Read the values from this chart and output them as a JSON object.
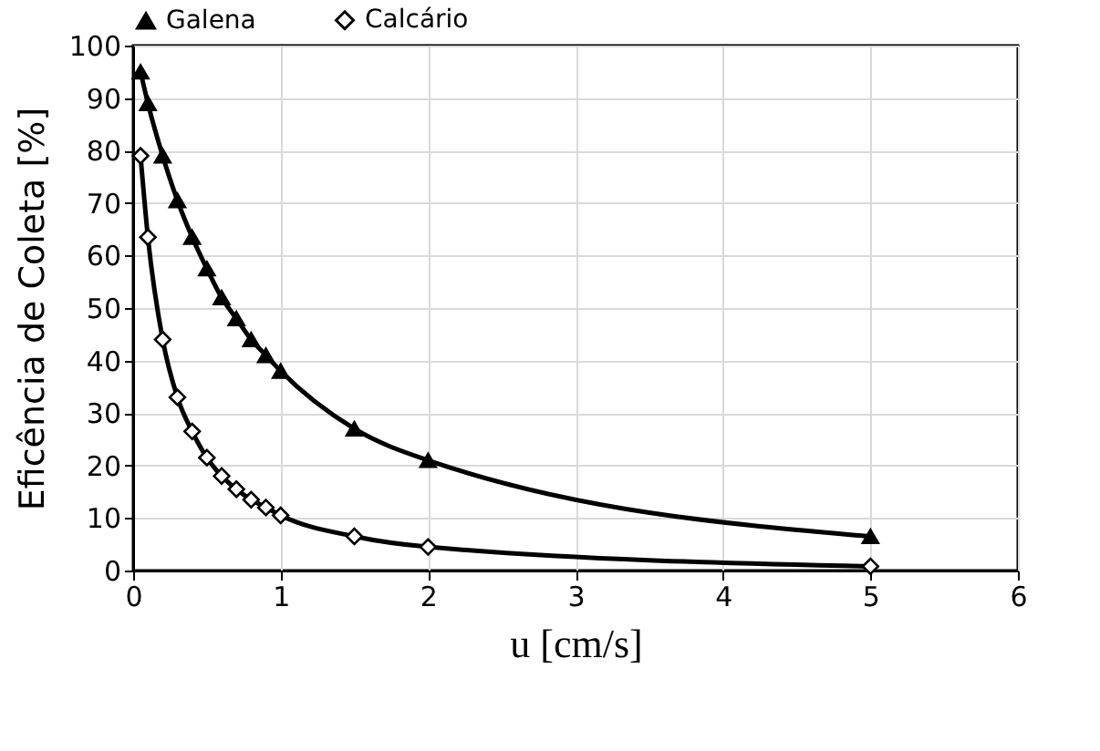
{
  "chart_data": {
    "type": "line",
    "xlabel": "u [cm/s]",
    "ylabel": "Eficência de Coleta [%]",
    "x": [
      0.05,
      0.1,
      0.2,
      0.3,
      0.4,
      0.5,
      0.6,
      0.7,
      0.8,
      0.9,
      1.0,
      1.5,
      2,
      5
    ],
    "series": [
      {
        "name": "Galena",
        "color": "#000000",
        "marker": "triangle",
        "values": [
          95,
          89,
          79,
          70.5,
          63.5,
          57.5,
          52,
          48,
          44,
          41,
          38,
          27,
          21,
          6.5
        ]
      },
      {
        "name": "Calcário",
        "color": "#000000",
        "marker": "diamond",
        "values": [
          79,
          63.5,
          44,
          33,
          26.5,
          21.5,
          18,
          15.5,
          13.5,
          12,
          10.5,
          6.5,
          4.5,
          0.8
        ]
      }
    ],
    "xlim": [
      0,
      6
    ],
    "xticks": [
      0,
      1,
      2,
      3,
      4,
      5,
      6
    ],
    "ylim": [
      0,
      100
    ],
    "yticks": [
      0,
      10,
      20,
      30,
      40,
      50,
      60,
      70,
      80,
      90,
      100
    ],
    "grid": true,
    "legend": "top",
    "line_style": "solid"
  }
}
